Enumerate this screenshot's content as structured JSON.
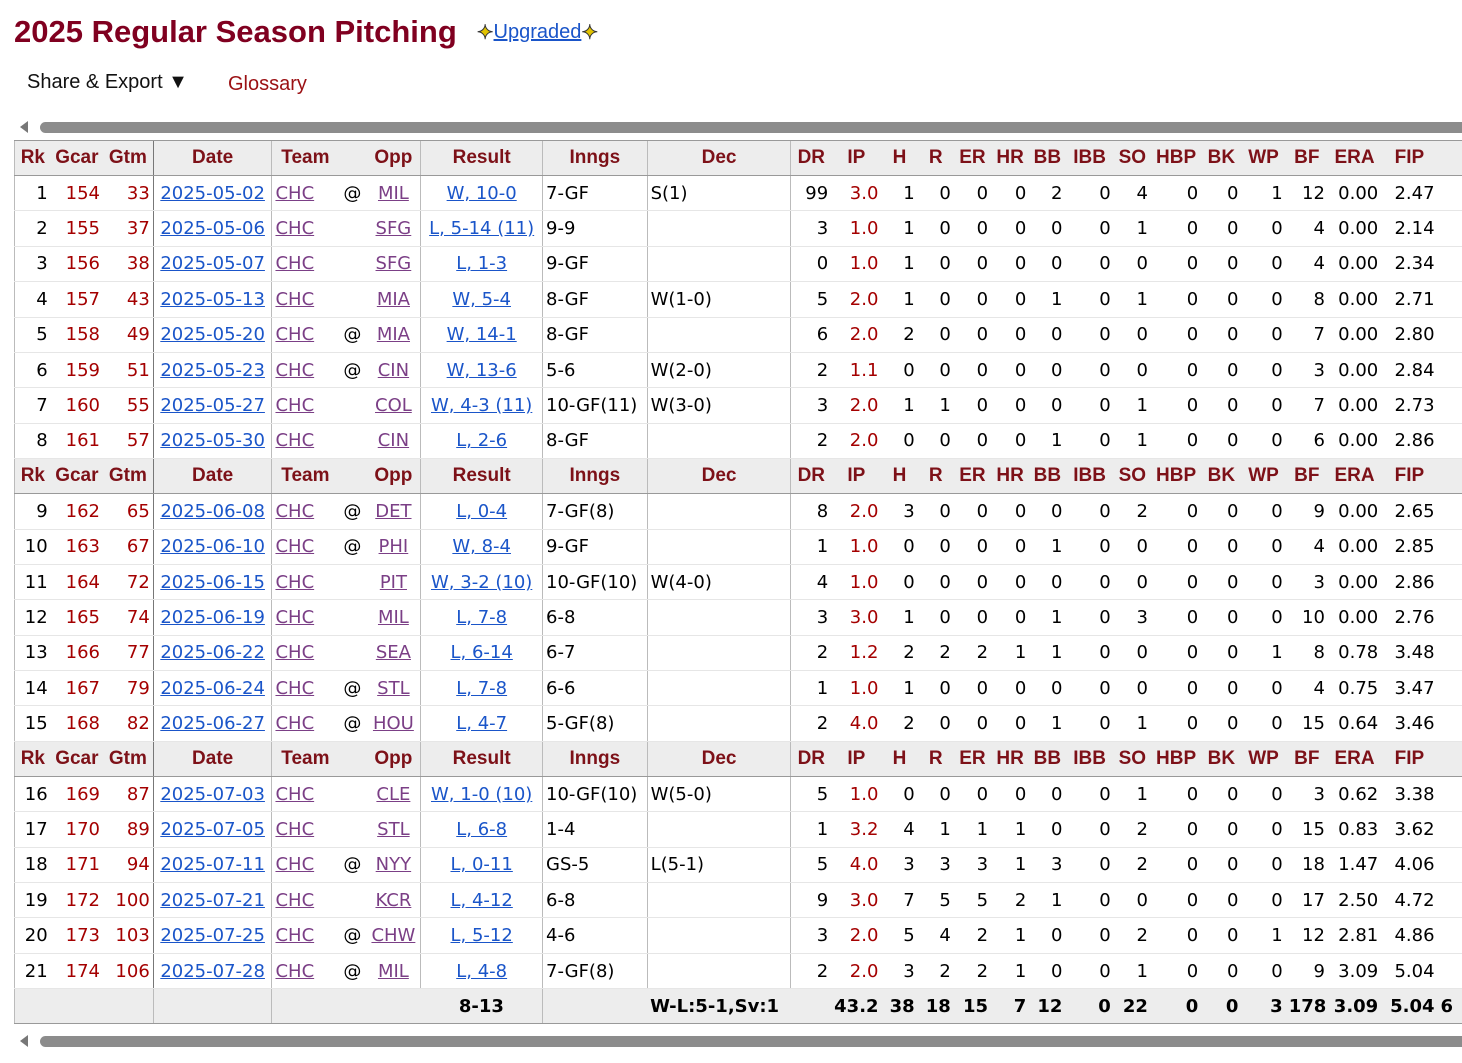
{
  "title": "2025 Regular Season Pitching",
  "upgraded": {
    "label": "Upgraded",
    "left_icon": "sparkle-icon",
    "right_icon": "sparkle-icon"
  },
  "menu": {
    "share_export": "Share & Export ▼",
    "glossary": "Glossary"
  },
  "columns": [
    "Rk",
    "Gcar",
    "Gtm",
    "Date",
    "Team",
    "",
    "Opp",
    "Result",
    "Inngs",
    "Dec",
    "DR",
    "IP",
    "H",
    "R",
    "ER",
    "HR",
    "BB",
    "IBB",
    "SO",
    "HBP",
    "BK",
    "WP",
    "BF",
    "ERA",
    "FIP",
    ""
  ],
  "rows": [
    {
      "rk": "1",
      "gcar": "154",
      "gtm": "33",
      "date": "2025-05-02",
      "team": "CHC",
      "at": "@",
      "opp": "MIL",
      "result": "W, 10-0",
      "inngs": "7-GF",
      "dec": "S(1)",
      "dr": "99",
      "ip": "3.0",
      "h": "1",
      "r": "0",
      "er": "0",
      "hr": "0",
      "bb": "2",
      "ibb": "0",
      "so": "4",
      "hbp": "0",
      "bk": "0",
      "wp": "1",
      "bf": "12",
      "era": "0.00",
      "fip": "2.47"
    },
    {
      "rk": "2",
      "gcar": "155",
      "gtm": "37",
      "date": "2025-05-06",
      "team": "CHC",
      "at": "",
      "opp": "SFG",
      "result": "L, 5-14 (11)",
      "inngs": "9-9",
      "dec": "",
      "dr": "3",
      "ip": "1.0",
      "h": "1",
      "r": "0",
      "er": "0",
      "hr": "0",
      "bb": "0",
      "ibb": "0",
      "so": "1",
      "hbp": "0",
      "bk": "0",
      "wp": "0",
      "bf": "4",
      "era": "0.00",
      "fip": "2.14"
    },
    {
      "rk": "3",
      "gcar": "156",
      "gtm": "38",
      "date": "2025-05-07",
      "team": "CHC",
      "at": "",
      "opp": "SFG",
      "result": "L, 1-3",
      "inngs": "9-GF",
      "dec": "",
      "dr": "0",
      "ip": "1.0",
      "h": "1",
      "r": "0",
      "er": "0",
      "hr": "0",
      "bb": "0",
      "ibb": "0",
      "so": "0",
      "hbp": "0",
      "bk": "0",
      "wp": "0",
      "bf": "4",
      "era": "0.00",
      "fip": "2.34"
    },
    {
      "rk": "4",
      "gcar": "157",
      "gtm": "43",
      "date": "2025-05-13",
      "team": "CHC",
      "at": "",
      "opp": "MIA",
      "result": "W, 5-4",
      "inngs": "8-GF",
      "dec": "W(1-0)",
      "dr": "5",
      "ip": "2.0",
      "h": "1",
      "r": "0",
      "er": "0",
      "hr": "0",
      "bb": "1",
      "ibb": "0",
      "so": "1",
      "hbp": "0",
      "bk": "0",
      "wp": "0",
      "bf": "8",
      "era": "0.00",
      "fip": "2.71"
    },
    {
      "rk": "5",
      "gcar": "158",
      "gtm": "49",
      "date": "2025-05-20",
      "team": "CHC",
      "at": "@",
      "opp": "MIA",
      "result": "W, 14-1",
      "inngs": "8-GF",
      "dec": "",
      "dr": "6",
      "ip": "2.0",
      "h": "2",
      "r": "0",
      "er": "0",
      "hr": "0",
      "bb": "0",
      "ibb": "0",
      "so": "0",
      "hbp": "0",
      "bk": "0",
      "wp": "0",
      "bf": "7",
      "era": "0.00",
      "fip": "2.80"
    },
    {
      "rk": "6",
      "gcar": "159",
      "gtm": "51",
      "date": "2025-05-23",
      "team": "CHC",
      "at": "@",
      "opp": "CIN",
      "result": "W, 13-6",
      "inngs": "5-6",
      "dec": "W(2-0)",
      "dr": "2",
      "ip": "1.1",
      "h": "0",
      "r": "0",
      "er": "0",
      "hr": "0",
      "bb": "0",
      "ibb": "0",
      "so": "0",
      "hbp": "0",
      "bk": "0",
      "wp": "0",
      "bf": "3",
      "era": "0.00",
      "fip": "2.84"
    },
    {
      "rk": "7",
      "gcar": "160",
      "gtm": "55",
      "date": "2025-05-27",
      "team": "CHC",
      "at": "",
      "opp": "COL",
      "result": "W, 4-3 (11)",
      "inngs": "10-GF(11)",
      "dec": "W(3-0)",
      "dr": "3",
      "ip": "2.0",
      "h": "1",
      "r": "1",
      "er": "0",
      "hr": "0",
      "bb": "0",
      "ibb": "0",
      "so": "1",
      "hbp": "0",
      "bk": "0",
      "wp": "0",
      "bf": "7",
      "era": "0.00",
      "fip": "2.73"
    },
    {
      "rk": "8",
      "gcar": "161",
      "gtm": "57",
      "date": "2025-05-30",
      "team": "CHC",
      "at": "",
      "opp": "CIN",
      "result": "L, 2-6",
      "inngs": "8-GF",
      "dec": "",
      "dr": "2",
      "ip": "2.0",
      "h": "0",
      "r": "0",
      "er": "0",
      "hr": "0",
      "bb": "1",
      "ibb": "0",
      "so": "1",
      "hbp": "0",
      "bk": "0",
      "wp": "0",
      "bf": "6",
      "era": "0.00",
      "fip": "2.86"
    },
    {
      "rk": "9",
      "gcar": "162",
      "gtm": "65",
      "date": "2025-06-08",
      "team": "CHC",
      "at": "@",
      "opp": "DET",
      "result": "L, 0-4",
      "inngs": "7-GF(8)",
      "dec": "",
      "dr": "8",
      "ip": "2.0",
      "h": "3",
      "r": "0",
      "er": "0",
      "hr": "0",
      "bb": "0",
      "ibb": "0",
      "so": "2",
      "hbp": "0",
      "bk": "0",
      "wp": "0",
      "bf": "9",
      "era": "0.00",
      "fip": "2.65"
    },
    {
      "rk": "10",
      "gcar": "163",
      "gtm": "67",
      "date": "2025-06-10",
      "team": "CHC",
      "at": "@",
      "opp": "PHI",
      "result": "W, 8-4",
      "inngs": "9-GF",
      "dec": "",
      "dr": "1",
      "ip": "1.0",
      "h": "0",
      "r": "0",
      "er": "0",
      "hr": "0",
      "bb": "1",
      "ibb": "0",
      "so": "0",
      "hbp": "0",
      "bk": "0",
      "wp": "0",
      "bf": "4",
      "era": "0.00",
      "fip": "2.85"
    },
    {
      "rk": "11",
      "gcar": "164",
      "gtm": "72",
      "date": "2025-06-15",
      "team": "CHC",
      "at": "",
      "opp": "PIT",
      "result": "W, 3-2 (10)",
      "inngs": "10-GF(10)",
      "dec": "W(4-0)",
      "dr": "4",
      "ip": "1.0",
      "h": "0",
      "r": "0",
      "er": "0",
      "hr": "0",
      "bb": "0",
      "ibb": "0",
      "so": "0",
      "hbp": "0",
      "bk": "0",
      "wp": "0",
      "bf": "3",
      "era": "0.00",
      "fip": "2.86"
    },
    {
      "rk": "12",
      "gcar": "165",
      "gtm": "74",
      "date": "2025-06-19",
      "team": "CHC",
      "at": "",
      "opp": "MIL",
      "result": "L, 7-8",
      "inngs": "6-8",
      "dec": "",
      "dr": "3",
      "ip": "3.0",
      "h": "1",
      "r": "0",
      "er": "0",
      "hr": "0",
      "bb": "1",
      "ibb": "0",
      "so": "3",
      "hbp": "0",
      "bk": "0",
      "wp": "0",
      "bf": "10",
      "era": "0.00",
      "fip": "2.76"
    },
    {
      "rk": "13",
      "gcar": "166",
      "gtm": "77",
      "date": "2025-06-22",
      "team": "CHC",
      "at": "",
      "opp": "SEA",
      "result": "L, 6-14",
      "inngs": "6-7",
      "dec": "",
      "dr": "2",
      "ip": "1.2",
      "h": "2",
      "r": "2",
      "er": "2",
      "hr": "1",
      "bb": "1",
      "ibb": "0",
      "so": "0",
      "hbp": "0",
      "bk": "0",
      "wp": "1",
      "bf": "8",
      "era": "0.78",
      "fip": "3.48"
    },
    {
      "rk": "14",
      "gcar": "167",
      "gtm": "79",
      "date": "2025-06-24",
      "team": "CHC",
      "at": "@",
      "opp": "STL",
      "result": "L, 7-8",
      "inngs": "6-6",
      "dec": "",
      "dr": "1",
      "ip": "1.0",
      "h": "1",
      "r": "0",
      "er": "0",
      "hr": "0",
      "bb": "0",
      "ibb": "0",
      "so": "0",
      "hbp": "0",
      "bk": "0",
      "wp": "0",
      "bf": "4",
      "era": "0.75",
      "fip": "3.47"
    },
    {
      "rk": "15",
      "gcar": "168",
      "gtm": "82",
      "date": "2025-06-27",
      "team": "CHC",
      "at": "@",
      "opp": "HOU",
      "result": "L, 4-7",
      "inngs": "5-GF(8)",
      "dec": "",
      "dr": "2",
      "ip": "4.0",
      "h": "2",
      "r": "0",
      "er": "0",
      "hr": "0",
      "bb": "1",
      "ibb": "0",
      "so": "1",
      "hbp": "0",
      "bk": "0",
      "wp": "0",
      "bf": "15",
      "era": "0.64",
      "fip": "3.46"
    },
    {
      "rk": "16",
      "gcar": "169",
      "gtm": "87",
      "date": "2025-07-03",
      "team": "CHC",
      "at": "",
      "opp": "CLE",
      "result": "W, 1-0 (10)",
      "inngs": "10-GF(10)",
      "dec": "W(5-0)",
      "dr": "5",
      "ip": "1.0",
      "h": "0",
      "r": "0",
      "er": "0",
      "hr": "0",
      "bb": "0",
      "ibb": "0",
      "so": "1",
      "hbp": "0",
      "bk": "0",
      "wp": "0",
      "bf": "3",
      "era": "0.62",
      "fip": "3.38"
    },
    {
      "rk": "17",
      "gcar": "170",
      "gtm": "89",
      "date": "2025-07-05",
      "team": "CHC",
      "at": "",
      "opp": "STL",
      "result": "L, 6-8",
      "inngs": "1-4",
      "dec": "",
      "dr": "1",
      "ip": "3.2",
      "h": "4",
      "r": "1",
      "er": "1",
      "hr": "1",
      "bb": "0",
      "ibb": "0",
      "so": "2",
      "hbp": "0",
      "bk": "0",
      "wp": "0",
      "bf": "15",
      "era": "0.83",
      "fip": "3.62"
    },
    {
      "rk": "18",
      "gcar": "171",
      "gtm": "94",
      "date": "2025-07-11",
      "team": "CHC",
      "at": "@",
      "opp": "NYY",
      "result": "L, 0-11",
      "inngs": "GS-5",
      "dec": "L(5-1)",
      "dr": "5",
      "ip": "4.0",
      "h": "3",
      "r": "3",
      "er": "3",
      "hr": "1",
      "bb": "3",
      "ibb": "0",
      "so": "2",
      "hbp": "0",
      "bk": "0",
      "wp": "0",
      "bf": "18",
      "era": "1.47",
      "fip": "4.06"
    },
    {
      "rk": "19",
      "gcar": "172",
      "gtm": "100",
      "date": "2025-07-21",
      "team": "CHC",
      "at": "",
      "opp": "KCR",
      "result": "L, 4-12",
      "inngs": "6-8",
      "dec": "",
      "dr": "9",
      "ip": "3.0",
      "h": "7",
      "r": "5",
      "er": "5",
      "hr": "2",
      "bb": "1",
      "ibb": "0",
      "so": "0",
      "hbp": "0",
      "bk": "0",
      "wp": "0",
      "bf": "17",
      "era": "2.50",
      "fip": "4.72"
    },
    {
      "rk": "20",
      "gcar": "173",
      "gtm": "103",
      "date": "2025-07-25",
      "team": "CHC",
      "at": "@",
      "opp": "CHW",
      "result": "L, 5-12",
      "inngs": "4-6",
      "dec": "",
      "dr": "3",
      "ip": "2.0",
      "h": "5",
      "r": "4",
      "er": "2",
      "hr": "1",
      "bb": "0",
      "ibb": "0",
      "so": "2",
      "hbp": "0",
      "bk": "0",
      "wp": "1",
      "bf": "12",
      "era": "2.81",
      "fip": "4.86"
    },
    {
      "rk": "21",
      "gcar": "174",
      "gtm": "106",
      "date": "2025-07-28",
      "team": "CHC",
      "at": "@",
      "opp": "MIL",
      "result": "L, 4-8",
      "inngs": "7-GF(8)",
      "dec": "",
      "dr": "2",
      "ip": "2.0",
      "h": "3",
      "r": "2",
      "er": "2",
      "hr": "1",
      "bb": "0",
      "ibb": "0",
      "so": "1",
      "hbp": "0",
      "bk": "0",
      "wp": "0",
      "bf": "9",
      "era": "3.09",
      "fip": "5.04"
    }
  ],
  "totals": {
    "result": "8-13",
    "dec": "W-L:5-1,Sv:1",
    "ip": "43.2",
    "h": "38",
    "r": "18",
    "er": "15",
    "hr": "7",
    "bb": "12",
    "ibb": "0",
    "so": "22",
    "hbp": "0",
    "bk": "0",
    "wp": "3",
    "bf": "178",
    "era": "3.09",
    "fip": "5.04",
    "extra": "6"
  },
  "header_repeat_after_rows": [
    8,
    15
  ]
}
